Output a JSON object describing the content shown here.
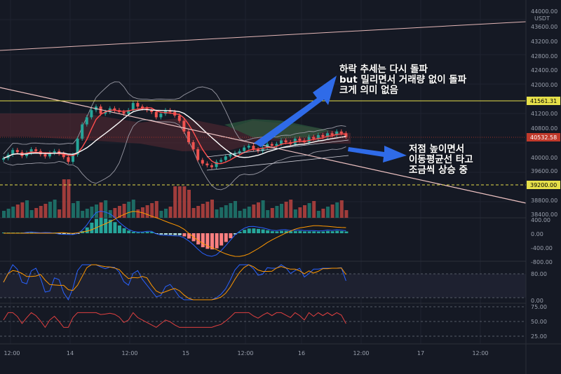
{
  "header": {
    "currency": "USDT",
    "top_price": "44000.00"
  },
  "price_axis": {
    "ticks": [
      "43600.00",
      "43200.00",
      "42800.00",
      "42400.00",
      "42000.00",
      "41200.00",
      "40800.00",
      "40000.00",
      "39600.00",
      "38800.00",
      "38400.00"
    ],
    "tags": [
      {
        "label": "41561.31",
        "color": "#e6e04a",
        "text_color": "#000000"
      },
      {
        "label": "40532.58",
        "color": "#c0392b",
        "text_color": "#ffffff"
      },
      {
        "label": "39200.00",
        "color": "#e6e04a",
        "text_color": "#000000"
      }
    ]
  },
  "macd_axis": {
    "ticks": [
      "400.00",
      "0.00",
      "-400.00",
      "-800.00"
    ]
  },
  "stoch_axis": {
    "ticks": [
      "80.00",
      "0.00"
    ]
  },
  "rsi_axis": {
    "ticks": [
      "75.00",
      "50.00",
      "25.00"
    ]
  },
  "time_axis": {
    "labels": [
      "12:00",
      "14",
      "12:00",
      "15",
      "12:00",
      "16",
      "12:00",
      "17",
      "12:00"
    ]
  },
  "annotations": {
    "top": "하락 추세는 다시 돌파\nbut 밀리면서 거래량 없이 돌파\n크게 의미 없음",
    "right": "저점 높이면서\n이동평균선 타고\n조금씩 상승 중"
  },
  "chart_data": {
    "type": "candlestick",
    "price_range": [
      38400,
      44000
    ],
    "horizontal_levels": [
      {
        "price": 41561.31,
        "color": "#e6e04a",
        "style": "solid"
      },
      {
        "price": 39200.0,
        "color": "#e6e04a",
        "style": "dashed"
      },
      {
        "price": 40532.58,
        "color": "#c0392b",
        "style": "dotted"
      }
    ],
    "arrows": [
      {
        "from": "ascending-channel",
        "to": "top-annotation",
        "color": "#2f6be8"
      },
      {
        "from": "latest-candles",
        "to": "right-annotation",
        "color": "#2f6be8"
      }
    ],
    "candle_closes": [
      39950,
      40050,
      40180,
      40120,
      40010,
      40100,
      40200,
      40150,
      40060,
      40000,
      40100,
      40150,
      40080,
      39980,
      39850,
      40050,
      40500,
      40900,
      41100,
      41300,
      41400,
      41200,
      41250,
      41350,
      41300,
      41250,
      41200,
      41300,
      41500,
      41400,
      41350,
      41300,
      41250,
      41100,
      41200,
      41300,
      41250,
      41150,
      41000,
      40700,
      40400,
      40200,
      39900,
      39800,
      39750,
      39700,
      39850,
      39900,
      40000,
      40050,
      40100,
      40150,
      40250,
      40300,
      40200,
      40150,
      40250,
      40350,
      40300,
      40350,
      40450,
      40400,
      40350,
      40500,
      40450,
      40400,
      40550,
      40500,
      40600,
      40550,
      40650,
      40600,
      40700,
      40650,
      40550
    ]
  }
}
